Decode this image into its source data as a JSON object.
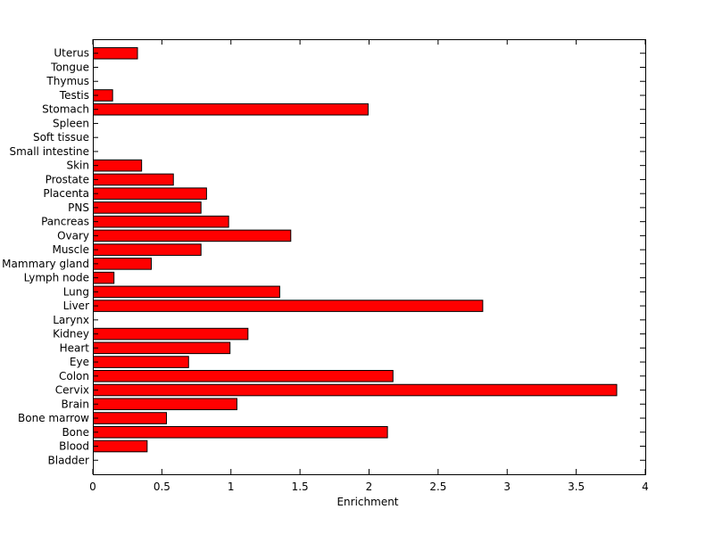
{
  "chart_data": {
    "type": "bar",
    "orientation": "horizontal",
    "categories": [
      "Bladder",
      "Blood",
      "Bone",
      "Bone marrow",
      "Brain",
      "Cervix",
      "Colon",
      "Eye",
      "Heart",
      "Kidney",
      "Larynx",
      "Liver",
      "Lung",
      "Lymph node",
      "Mammary gland",
      "Muscle",
      "Ovary",
      "Pancreas",
      "PNS",
      "Placenta",
      "Prostate",
      "Skin",
      "Small intestine",
      "Soft tissue",
      "Spleen",
      "Stomach",
      "Testis",
      "Thymus",
      "Tongue",
      "Uterus"
    ],
    "values": [
      0,
      0.39,
      2.13,
      0.53,
      1.04,
      3.79,
      2.17,
      0.69,
      0.99,
      1.12,
      0,
      2.82,
      1.35,
      0.15,
      0.42,
      0.78,
      1.43,
      0.98,
      0.78,
      0.82,
      0.58,
      0.35,
      0,
      0,
      0,
      1.99,
      0.14,
      0,
      0,
      0.32
    ],
    "title": "",
    "xlabel": "Enrichment",
    "ylabel": "",
    "xlim": [
      0,
      4
    ],
    "xticks": [
      "0",
      "0.5",
      "1",
      "1.5",
      "2",
      "2.5",
      "3",
      "3.5",
      "4"
    ],
    "bar_color": "#ff0000",
    "grid": false
  }
}
